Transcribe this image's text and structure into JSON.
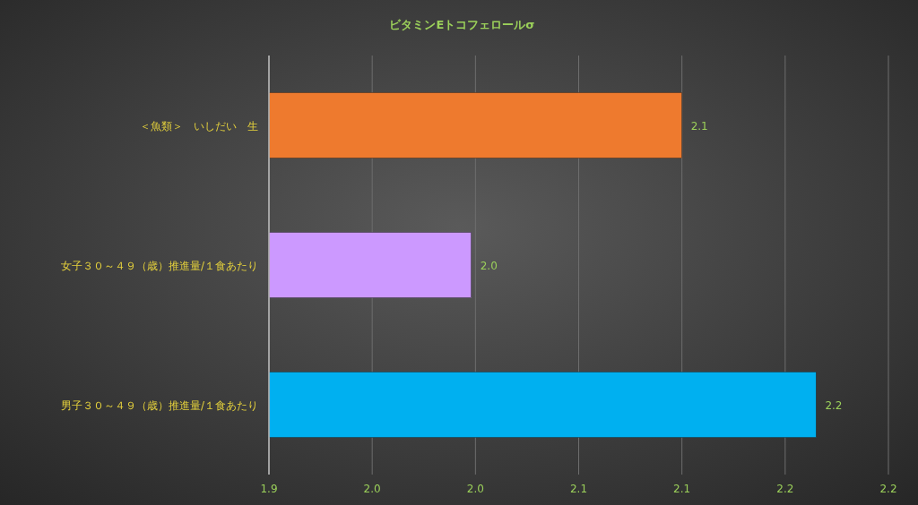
{
  "chart_data": {
    "type": "bar",
    "orientation": "horizontal",
    "title": "ビタミンEトコフェロールσ",
    "categories": [
      "＜魚類＞　いしだい　生",
      "女子３０～４９（歳）推進量/１食あたり",
      "男子３０～４９（歳）推進量/１食あたり"
    ],
    "values": [
      2.1,
      1.998,
      2.165
    ],
    "colors": [
      "#ee7a2e",
      "#cc99ff",
      "#00b0f0"
    ],
    "value_labels": [
      "2.1",
      "2.0",
      "2.2"
    ],
    "xlim": [
      1.9,
      2.2
    ],
    "xticks": [
      {
        "value": 1.9,
        "label": "1.9"
      },
      {
        "value": 1.95,
        "label": "2.0"
      },
      {
        "value": 2.0,
        "label": "2.0"
      },
      {
        "value": 2.05,
        "label": "2.1"
      },
      {
        "value": 2.1,
        "label": "2.1"
      },
      {
        "value": 2.15,
        "label": "2.2"
      },
      {
        "value": 2.2,
        "label": "2.2"
      }
    ],
    "grid": "x"
  }
}
